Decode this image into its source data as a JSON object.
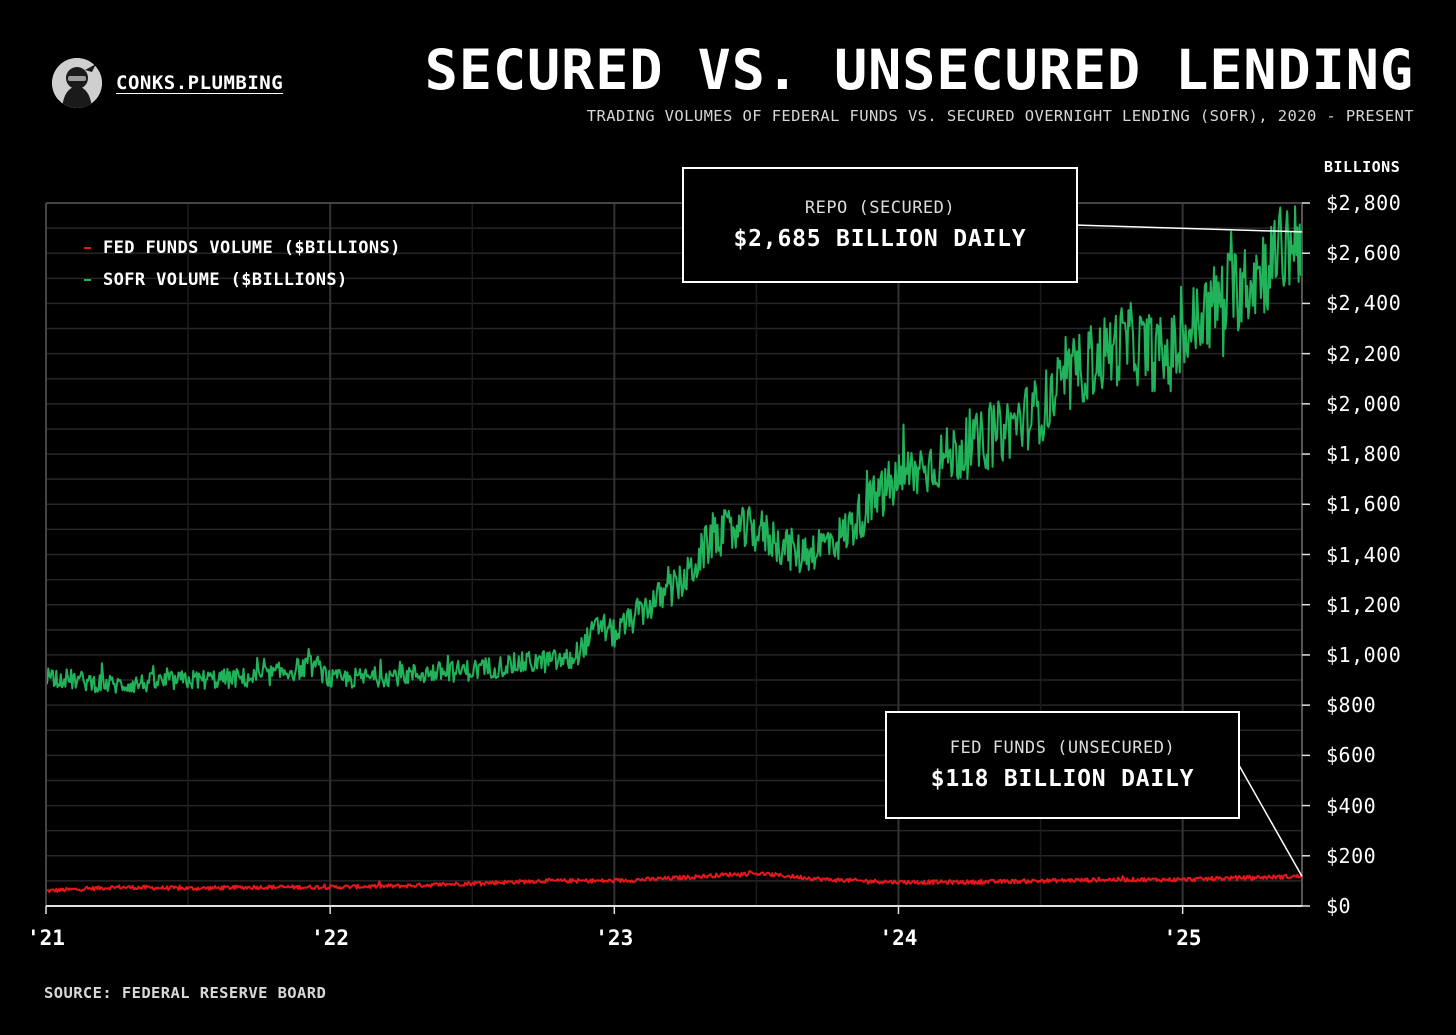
{
  "brand": {
    "name": "CONKS.PLUMBING",
    "logo_icon": "ninja-avatar-icon"
  },
  "source": "SOURCE: FEDERAL RESERVE BOARD",
  "chart_data": {
    "type": "line",
    "title": "SECURED VS. UNSECURED LENDING",
    "subtitle": "TRADING VOLUMES OF FEDERAL FUNDS VS. SECURED OVERNIGHT LENDING (SOFR), 2020 - PRESENT",
    "ylabel": "BILLIONS",
    "ylim": [
      0,
      2800
    ],
    "xlim": [
      2021.0,
      2025.42
    ],
    "yticks": [
      0,
      200,
      400,
      600,
      800,
      1000,
      1200,
      1400,
      1600,
      1800,
      2000,
      2200,
      2400,
      2600,
      2800
    ],
    "ytick_labels": [
      "$0",
      "$200",
      "$400",
      "$600",
      "$800",
      "$1,000",
      "$1,200",
      "$1,400",
      "$1,600",
      "$1,800",
      "$2,000",
      "$2,200",
      "$2,400",
      "$2,600",
      "$2,800"
    ],
    "xticks": [
      2021,
      2022,
      2023,
      2024,
      2025
    ],
    "xtick_labels": [
      "'21",
      "'22",
      "'23",
      "'24",
      "'25"
    ],
    "grid": true,
    "legend_position": "top-left",
    "series": [
      {
        "name": "FED FUNDS VOLUME ($BILLIONS)",
        "color": "#e8161b",
        "x": [
          2021.0,
          2021.25,
          2021.5,
          2021.75,
          2022.0,
          2022.25,
          2022.5,
          2022.75,
          2023.0,
          2023.2,
          2023.4,
          2023.5,
          2023.75,
          2024.0,
          2024.25,
          2024.5,
          2024.75,
          2025.0,
          2025.2,
          2025.42
        ],
        "y": [
          60,
          75,
          70,
          75,
          75,
          80,
          90,
          100,
          100,
          110,
          125,
          130,
          105,
          95,
          95,
          100,
          105,
          105,
          112,
          118
        ]
      },
      {
        "name": "SOFR VOLUME ($BILLIONS)",
        "color": "#21b25a",
        "x": [
          2021.0,
          2021.1,
          2021.25,
          2021.5,
          2021.75,
          2021.95,
          2022.0,
          2022.25,
          2022.5,
          2022.7,
          2022.85,
          2022.95,
          2023.0,
          2023.1,
          2023.25,
          2023.35,
          2023.5,
          2023.65,
          2023.8,
          2023.9,
          2024.0,
          2024.15,
          2024.3,
          2024.5,
          2024.65,
          2024.8,
          2024.95,
          2025.05,
          2025.15,
          2025.3,
          2025.42
        ],
        "y": [
          920,
          900,
          880,
          900,
          910,
          960,
          900,
          920,
          940,
          970,
          980,
          1120,
          1080,
          1180,
          1300,
          1480,
          1500,
          1400,
          1470,
          1600,
          1700,
          1780,
          1850,
          1980,
          2150,
          2250,
          2180,
          2330,
          2430,
          2550,
          2685
        ]
      }
    ],
    "annotations": [
      {
        "label": "REPO (SECURED)",
        "text": "$2,685 BILLION DAILY",
        "x": 2025.42,
        "y": 2685
      },
      {
        "label": "FED FUNDS (UNSECURED)",
        "text": "$118 BILLION DAILY",
        "x": 2025.42,
        "y": 118
      }
    ]
  }
}
